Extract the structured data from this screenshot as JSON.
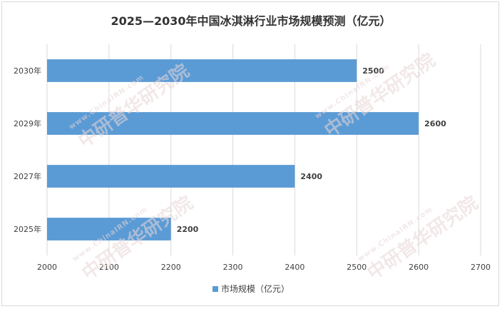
{
  "chart_data": {
    "type": "bar",
    "orientation": "horizontal",
    "title": "2025—2030年中国冰淇淋行业市场规模预测（亿元）",
    "categories": [
      "2030年",
      "2029年",
      "2027年",
      "2025年"
    ],
    "series": [
      {
        "name": "市场规模（亿元）",
        "values": [
          2500,
          2600,
          2400,
          2200
        ],
        "color": "#5b9bd5"
      }
    ],
    "x_ticks": [
      2000,
      2100,
      2200,
      2300,
      2400,
      2500,
      2600,
      2700
    ],
    "xlim": [
      2000,
      2700
    ],
    "grid": "vertical",
    "legend_position": "bottom"
  },
  "watermark": {
    "url": "www.ChinaIRN.com",
    "name": "中研普华研究院",
    "logo": "CIRN"
  }
}
